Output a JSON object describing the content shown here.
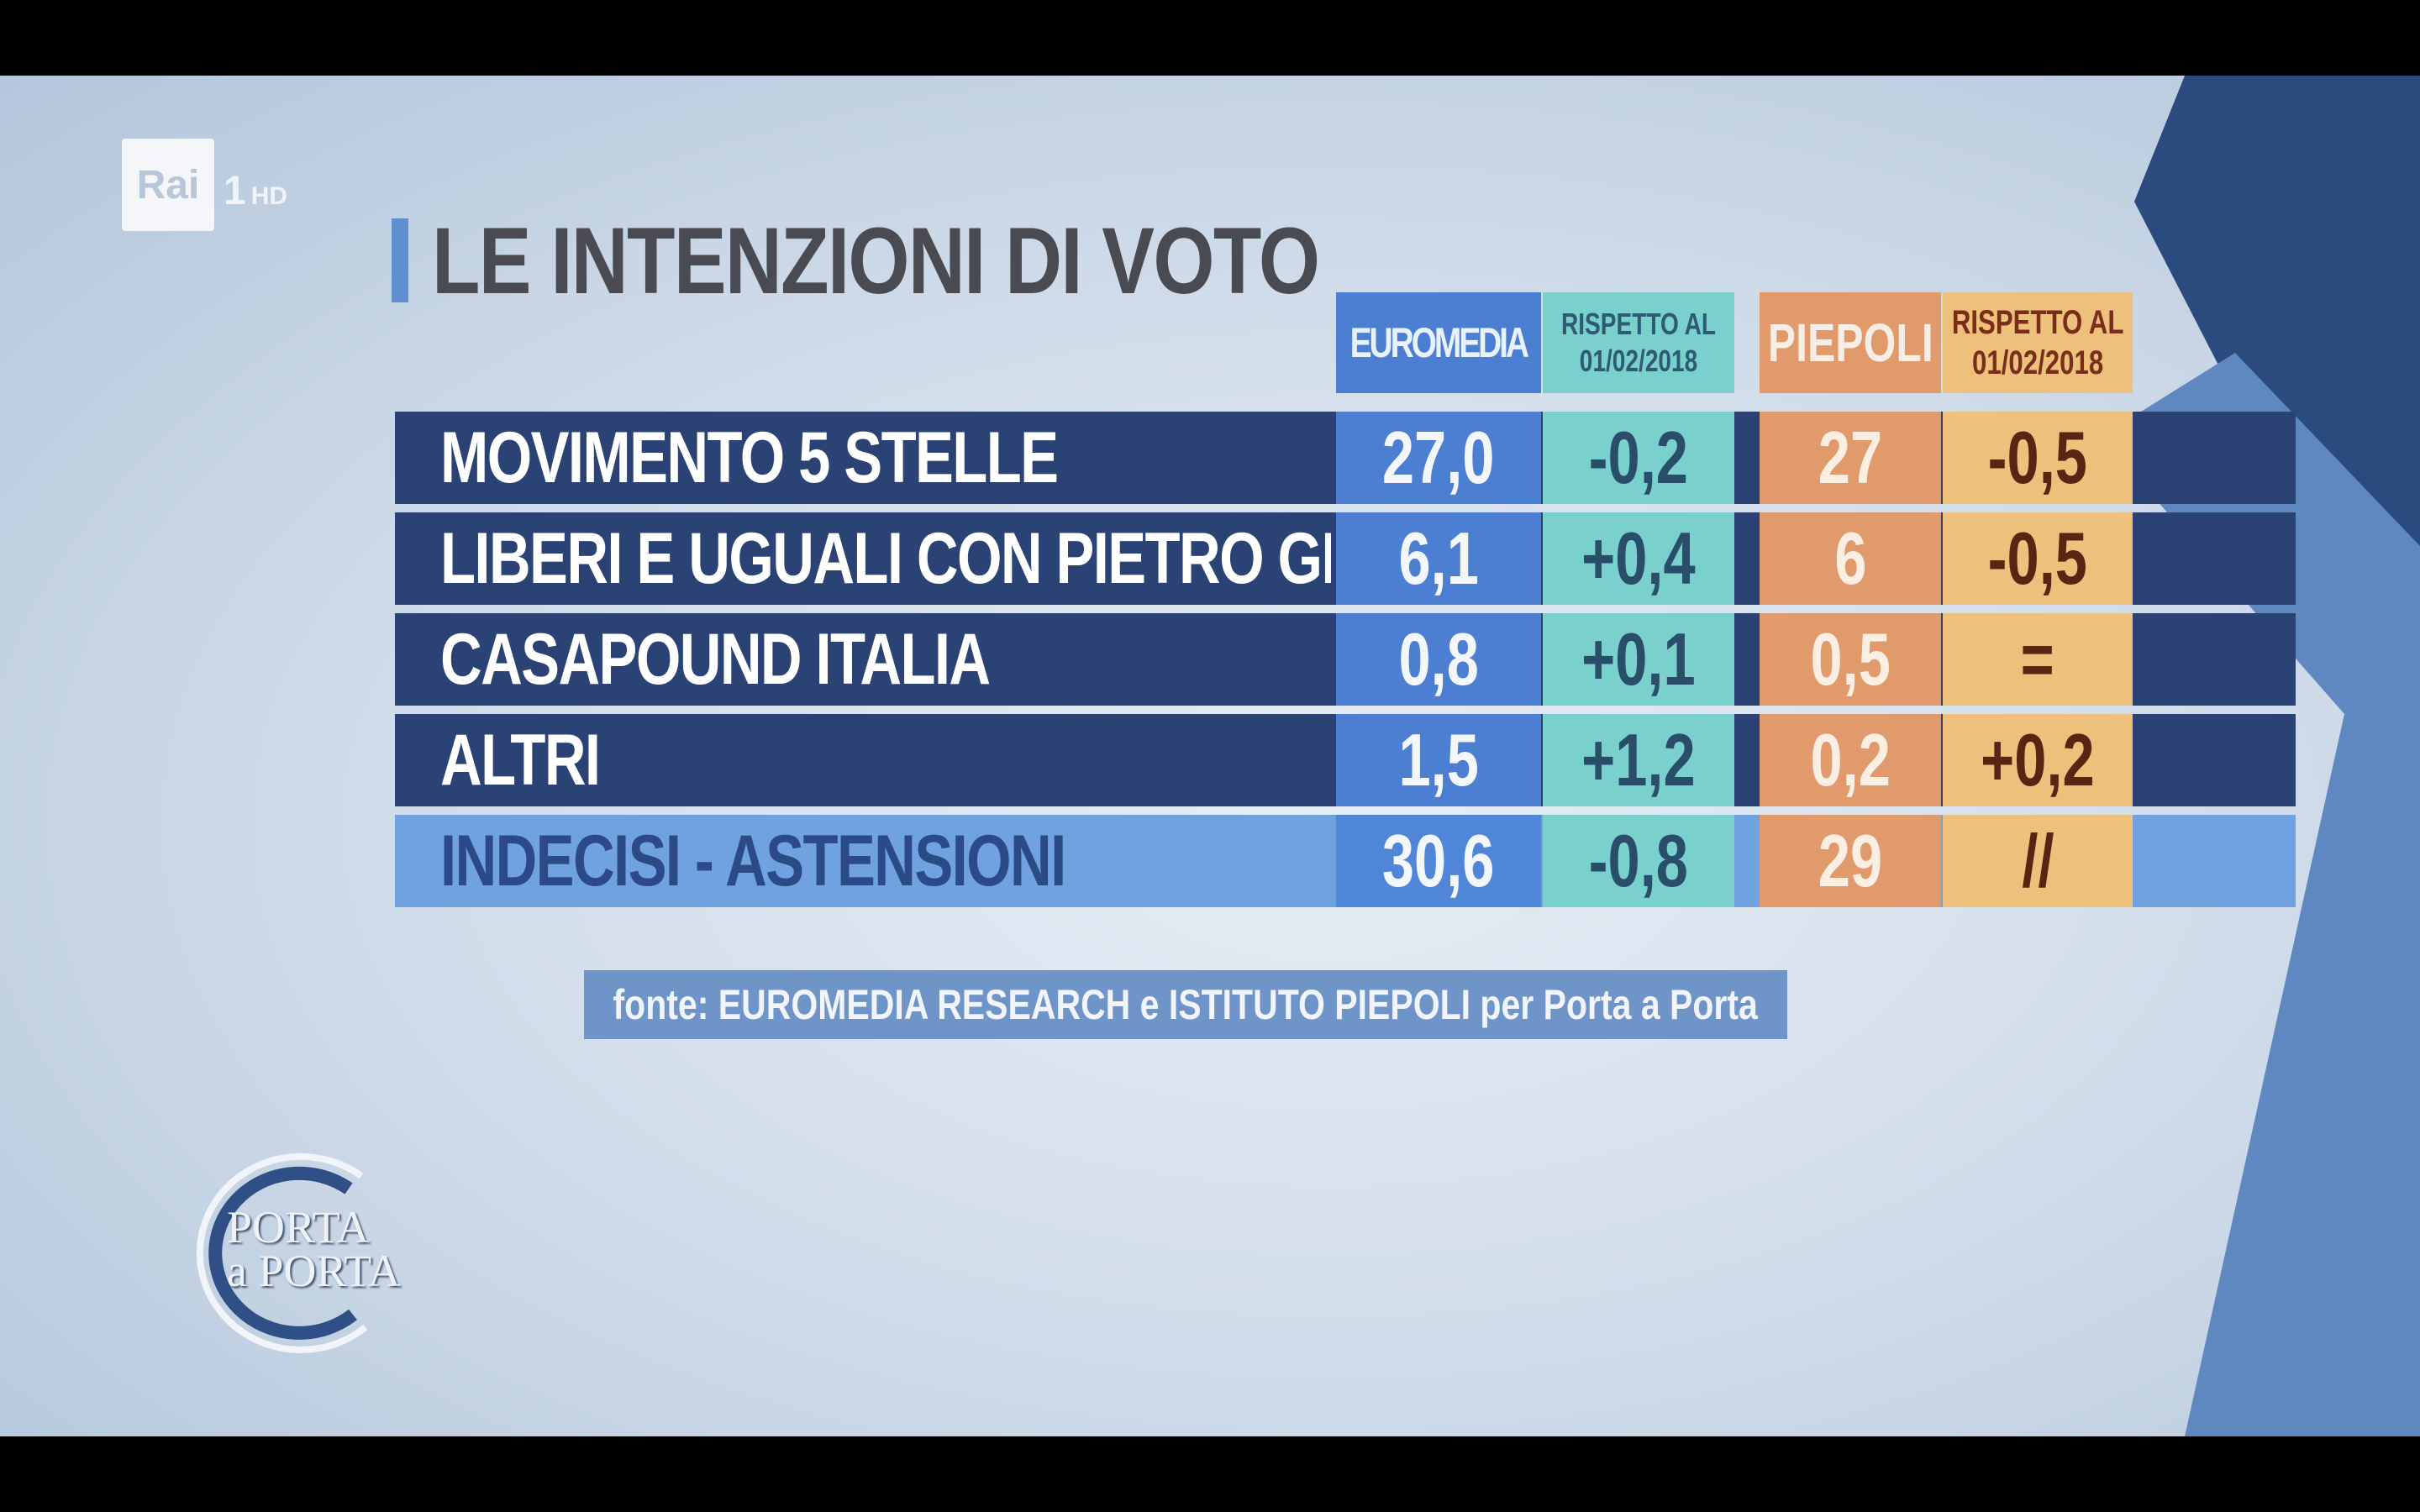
{
  "broadcaster": {
    "logo_text": "Rai",
    "channel": "1",
    "quality": "HD"
  },
  "title": "LE INTENZIONI DI VOTO",
  "columns": {
    "euromedia": "EUROMEDIA",
    "rispetto1_line1": "RISPETTO AL",
    "rispetto1_line2": "01/02/2018",
    "piepoli": "PIEPOLI",
    "rispetto2_line1": "RISPETTO AL",
    "rispetto2_line2": "01/02/2018"
  },
  "rows": [
    {
      "name": "MOVIMENTO 5 STELLE",
      "euromedia": "27,0",
      "delta_euromedia": "-0,2",
      "piepoli": "27",
      "delta_piepoli": "-0,5"
    },
    {
      "name": "LIBERI E UGUALI CON PIETRO GRASSO",
      "euromedia": "6,1",
      "delta_euromedia": "+0,4",
      "piepoli": "6",
      "delta_piepoli": "-0,5"
    },
    {
      "name": "CASAPOUND ITALIA",
      "euromedia": "0,8",
      "delta_euromedia": "+0,1",
      "piepoli": "0,5",
      "delta_piepoli": "="
    },
    {
      "name": "ALTRI",
      "euromedia": "1,5",
      "delta_euromedia": "+1,2",
      "piepoli": "0,2",
      "delta_piepoli": "+0,2"
    },
    {
      "name": "INDECISI - ASTENSIONI",
      "euromedia": "30,6",
      "delta_euromedia": "-0,8",
      "piepoli": "29",
      "delta_piepoli": "//"
    }
  ],
  "source": "fonte: EUROMEDIA RESEARCH e ISTITUTO PIEPOLI per Porta a Porta",
  "show_logo": {
    "line1": "PORTA",
    "line2": "a PORTA"
  },
  "chart_data": {
    "type": "table",
    "title": "LE INTENZIONI DI VOTO",
    "columns": [
      "EUROMEDIA",
      "RISPETTO AL 01/02/2018",
      "PIEPOLI",
      "RISPETTO AL 01/02/2018"
    ],
    "rows": [
      [
        "MOVIMENTO 5 STELLE",
        "27,0",
        "-0,2",
        "27",
        "-0,5"
      ],
      [
        "LIBERI E UGUALI CON PIETRO GRASSO",
        "6,1",
        "+0,4",
        "6",
        "-0,5"
      ],
      [
        "CASAPOUND ITALIA",
        "0,8",
        "+0,1",
        "0,5",
        "="
      ],
      [
        "ALTRI",
        "1,5",
        "+1,2",
        "0,2",
        "+0,2"
      ],
      [
        "INDECISI - ASTENSIONI",
        "30,6",
        "-0,8",
        "29",
        "//"
      ]
    ]
  },
  "colors": {
    "row_dark": "#2a4374",
    "row_highlight": "#6fa2df",
    "euromedia": "#4c7fd2",
    "euromedia_delta": "#79d0cd",
    "piepoli": "#e09a6b",
    "piepoli_delta": "#edc07b"
  }
}
